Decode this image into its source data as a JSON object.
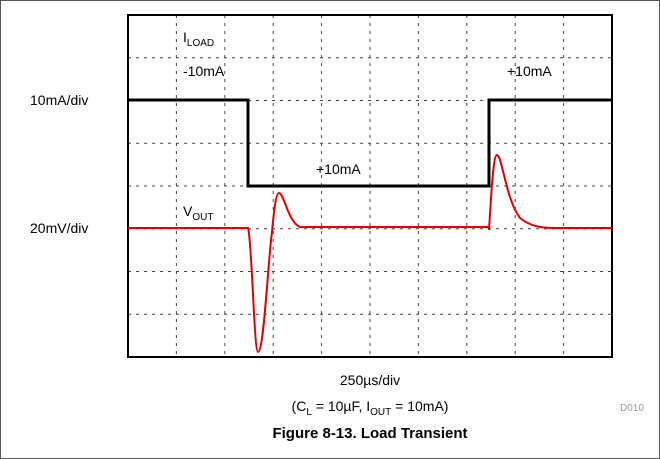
{
  "figure": {
    "i_load_label": {
      "main": "I",
      "sub": "LOAD"
    },
    "v_out_label": {
      "main": "V",
      "sub": "OUT"
    },
    "annotations": [
      "-10mA",
      "+10mA",
      "+10mA"
    ],
    "left_scales": [
      "10mA/div",
      "20mV/div"
    ],
    "time_scale": "250µs/div",
    "conditions": [
      {
        "text": "(C",
        "sub": false
      },
      {
        "text": "L",
        "sub": true
      },
      {
        "text": " = 10µF, I",
        "sub": false
      },
      {
        "text": "OUT",
        "sub": true
      },
      {
        "text": " = 10mA)",
        "sub": false
      }
    ],
    "code": "D010",
    "caption": "Figure 8-13. Load Transient"
  }
}
